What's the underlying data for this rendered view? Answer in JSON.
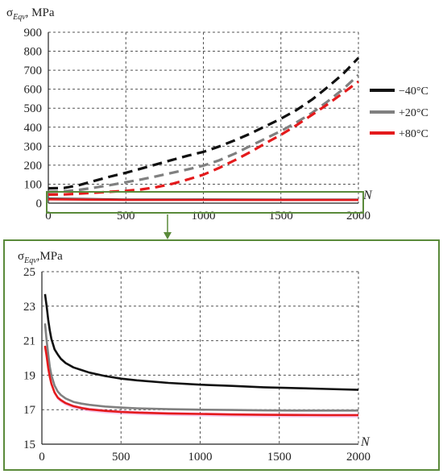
{
  "colors": {
    "minus40": "#111111",
    "plus20": "#808080",
    "plus80": "#e41a1c",
    "highlight_box": "#5a8a3a",
    "arrow": "#5a8a3a",
    "pink_band": "#f3b6ea",
    "grid": "#555555"
  },
  "chart_data": [
    {
      "type": "line",
      "ylabel": "σ_Eqv, MPa",
      "ylabel_symbol": "σ",
      "ylabel_sub": "Eqv",
      "ylabel_unit": ", MPa",
      "xlabel": "N",
      "xlim": [
        0,
        2000
      ],
      "ylim": [
        0,
        900
      ],
      "xticks": [
        "0",
        "500",
        "1000",
        "1500",
        "2000"
      ],
      "yticks": [
        "0",
        "100",
        "200",
        "300",
        "400",
        "500",
        "600",
        "700",
        "800",
        "900"
      ],
      "grid": true,
      "legend_position": "right",
      "series": [
        {
          "name": "−40°C",
          "style": "dashed",
          "color_key": "minus40",
          "x": [
            0,
            100,
            200,
            300,
            400,
            500,
            600,
            700,
            800,
            900,
            1000,
            1100,
            1200,
            1300,
            1400,
            1500,
            1600,
            1700,
            1800,
            1900,
            2000
          ],
          "y": [
            78,
            80,
            95,
            118,
            140,
            160,
            182,
            205,
            228,
            250,
            270,
            298,
            330,
            365,
            405,
            445,
            490,
            545,
            610,
            680,
            765
          ]
        },
        {
          "name": "+20°C",
          "style": "dashed",
          "color_key": "plus20",
          "x": [
            0,
            100,
            200,
            300,
            400,
            500,
            600,
            700,
            800,
            900,
            1000,
            1100,
            1200,
            1300,
            1400,
            1500,
            1600,
            1700,
            1800,
            1900,
            2000
          ],
          "y": [
            60,
            62,
            70,
            82,
            95,
            110,
            125,
            142,
            160,
            178,
            198,
            225,
            260,
            300,
            340,
            380,
            425,
            475,
            535,
            600,
            675
          ]
        },
        {
          "name": "+80°C",
          "style": "dashed",
          "color_key": "plus80",
          "x": [
            0,
            100,
            200,
            300,
            400,
            500,
            600,
            700,
            800,
            900,
            1000,
            1100,
            1200,
            1300,
            1400,
            1500,
            1600,
            1700,
            1800,
            1900,
            2000
          ],
          "y": [
            45,
            46,
            50,
            55,
            60,
            65,
            72,
            85,
            102,
            125,
            150,
            185,
            225,
            268,
            315,
            360,
            410,
            465,
            520,
            580,
            640
          ]
        },
        {
          "name": "",
          "style": "solid",
          "color_key": "minus40",
          "x": [
            0,
            500,
            1000,
            1500,
            2000
          ],
          "y": [
            24,
            19,
            18.5,
            18.3,
            18.2
          ]
        },
        {
          "name": "",
          "style": "solid",
          "color_key": "plus20",
          "x": [
            0,
            500,
            1000,
            1500,
            2000
          ],
          "y": [
            22,
            17.2,
            17.1,
            17.0,
            17.0
          ]
        },
        {
          "name": "",
          "style": "solid",
          "color_key": "plus80",
          "x": [
            0,
            500,
            1000,
            1500,
            2000
          ],
          "y": [
            20,
            17.0,
            16.8,
            16.7,
            16.7
          ]
        }
      ]
    },
    {
      "type": "line",
      "ylabel": "σ_Eqv, MPa",
      "ylabel_symbol": "σ",
      "ylabel_sub": "Eqv",
      "ylabel_unit": ",MPa",
      "xlabel": "N",
      "xlim": [
        0,
        2000
      ],
      "ylim": [
        15,
        25
      ],
      "xticks": [
        "0",
        "500",
        "1000",
        "1500",
        "2000"
      ],
      "yticks": [
        "15",
        "17",
        "19",
        "21",
        "23",
        "25"
      ],
      "grid": true,
      "series": [
        {
          "color_key": "minus40",
          "style": "solid",
          "x": [
            20,
            30,
            40,
            50,
            60,
            70,
            80,
            100,
            120,
            150,
            200,
            250,
            300,
            400,
            500,
            600,
            800,
            1000,
            1200,
            1400,
            1600,
            1800,
            2000
          ],
          "y": [
            23.7,
            23.0,
            22.2,
            21.6,
            21.1,
            20.8,
            20.5,
            20.2,
            19.95,
            19.7,
            19.45,
            19.3,
            19.15,
            18.95,
            18.8,
            18.7,
            18.55,
            18.45,
            18.38,
            18.3,
            18.25,
            18.2,
            18.15
          ]
        },
        {
          "color_key": "plus20",
          "style": "solid",
          "x": [
            20,
            30,
            40,
            50,
            60,
            80,
            100,
            120,
            150,
            200,
            250,
            300,
            400,
            500,
            600,
            800,
            1000,
            1200,
            1400,
            1600,
            1800,
            2000
          ],
          "y": [
            22.0,
            21.0,
            20.2,
            19.5,
            19.0,
            18.4,
            18.05,
            17.85,
            17.65,
            17.45,
            17.35,
            17.28,
            17.18,
            17.12,
            17.08,
            17.03,
            17.0,
            16.98,
            16.96,
            16.95,
            16.95,
            16.95
          ]
        },
        {
          "color_key": "plus80",
          "style": "solid",
          "x": [
            20,
            30,
            40,
            50,
            60,
            80,
            100,
            120,
            150,
            200,
            250,
            300,
            400,
            500,
            600,
            800,
            1000,
            1200,
            1400,
            1600,
            1800,
            2000
          ],
          "y": [
            20.7,
            20.1,
            19.4,
            18.9,
            18.5,
            18.0,
            17.7,
            17.55,
            17.38,
            17.2,
            17.1,
            17.02,
            16.93,
            16.87,
            16.83,
            16.78,
            16.75,
            16.72,
            16.7,
            16.69,
            16.68,
            16.68
          ]
        }
      ]
    }
  ]
}
